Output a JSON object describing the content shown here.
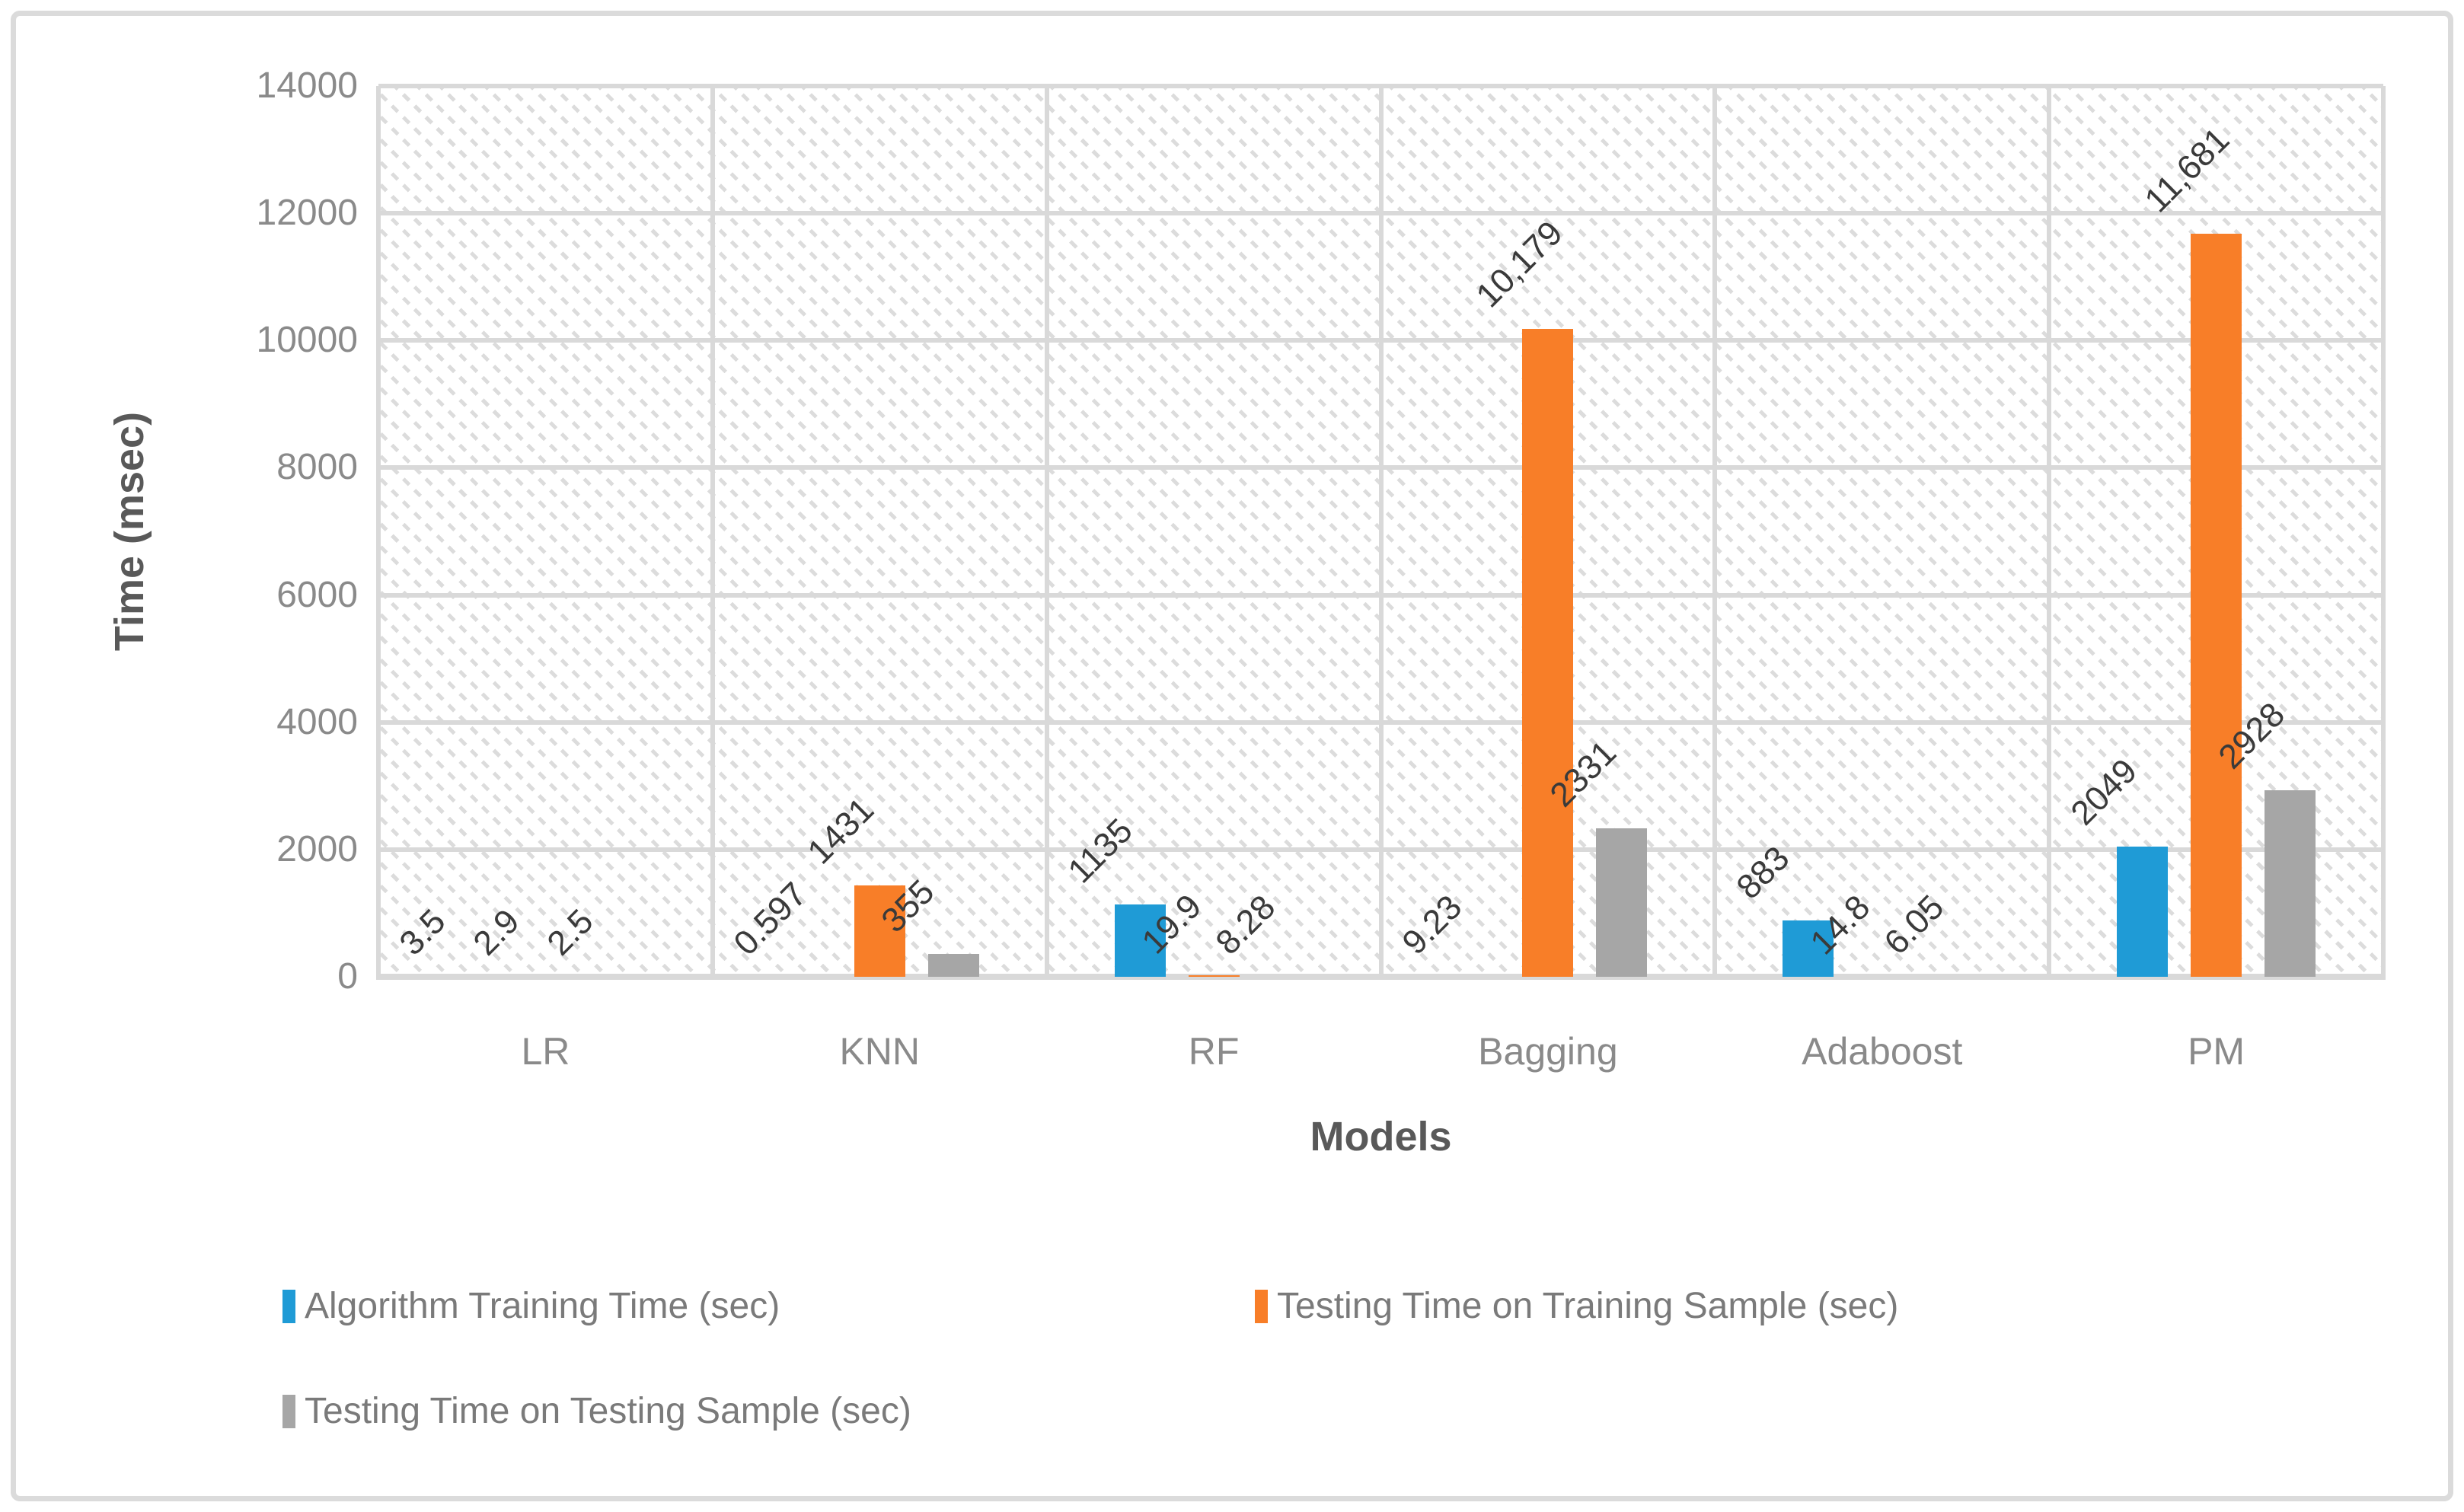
{
  "chart_data": {
    "type": "bar",
    "title": "",
    "xlabel": "Models",
    "ylabel": "Time (msec)",
    "ylim": [
      0,
      14000
    ],
    "ytick_step": 2000,
    "yticks": [
      "0",
      "2000",
      "4000",
      "6000",
      "8000",
      "10000",
      "12000",
      "14000"
    ],
    "categories": [
      "LR",
      "KNN",
      "RF",
      "Bagging",
      "Adaboost",
      "PM"
    ],
    "series": [
      {
        "name": "Algorithm Training Time (sec)",
        "color": "#1F9BD6",
        "values": [
          3.5,
          0.597,
          1135,
          9.23,
          883,
          2049
        ],
        "labels": [
          "3.5",
          "0.597",
          "1135",
          "9.23",
          "883",
          "2049"
        ]
      },
      {
        "name": "Testing Time on Training Sample (sec)",
        "color": "#F87E28",
        "values": [
          2.9,
          1431,
          19.9,
          10179,
          14.8,
          11681
        ],
        "labels": [
          "2.9",
          "1431",
          "19.9",
          "10,179",
          "14.8",
          "11,681"
        ]
      },
      {
        "name": "Testing Time on Testing Sample (sec)",
        "color": "#A6A6A6",
        "values": [
          2.5,
          355,
          8.28,
          2331,
          6.05,
          2928
        ],
        "labels": [
          "2.5",
          "355",
          "8.28",
          "2331",
          "6.05",
          "2928"
        ]
      }
    ],
    "legend_position": "bottom",
    "grid": true,
    "plot_background_pattern": "diagonal-hatch",
    "style": {
      "gridline_color": "#D9D9D9",
      "frame_border_color": "#DBDBDB",
      "tick_text_color": "#8A8A8A",
      "axis_title_color": "#595959",
      "data_label_color": "#3A3A3A",
      "legend_text_color": "#7A7A7A"
    }
  }
}
